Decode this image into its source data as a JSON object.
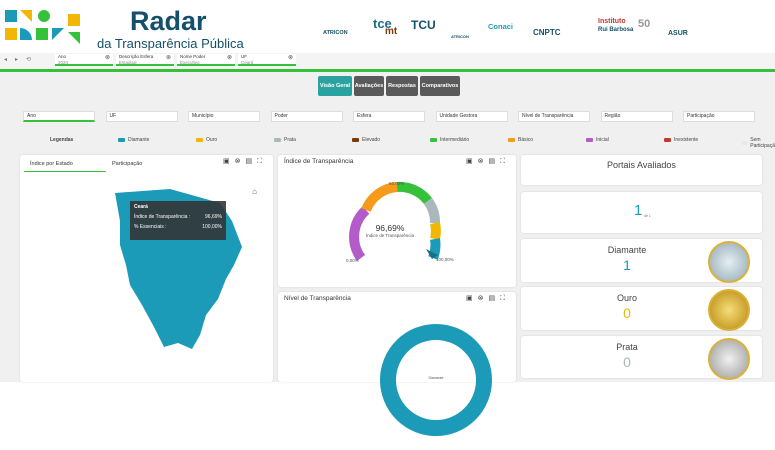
{
  "header": {
    "title": "Radar",
    "subtitle": "da Transparência Pública",
    "partners": [
      "ATRICON",
      "tce",
      "mt",
      "TCU",
      "ATRICON",
      "Conaci",
      "CNPTC",
      "Instituto",
      "Rui Barbosa",
      "50",
      "ASUR"
    ]
  },
  "active_filters": [
    {
      "label": "Ano",
      "value": "2024"
    },
    {
      "label": "Descrição Esfera",
      "value": "Estadual"
    },
    {
      "label": "Nome Poder",
      "value": "Executivo"
    },
    {
      "label": "UF",
      "value": "Ceará"
    }
  ],
  "tabs": [
    "Visão Geral",
    "Avaliações",
    "Respostas",
    "Comparativos"
  ],
  "filters": [
    "Ano",
    "UF",
    "Município",
    "Poder",
    "Esfera",
    "Unidade Gestora",
    "Nível de Transparência",
    "Região",
    "Participação"
  ],
  "legend": {
    "title": "Legendas",
    "items": [
      {
        "name": "Diamante",
        "color": "#1c9bb8"
      },
      {
        "name": "Ouro",
        "color": "#f2b705"
      },
      {
        "name": "Prata",
        "color": "#a9b8bd"
      },
      {
        "name": "Elevado",
        "color": "#7a3b0c"
      },
      {
        "name": "Intermediário",
        "color": "#35c23a"
      },
      {
        "name": "Básico",
        "color": "#f59a1b"
      },
      {
        "name": "Inicial",
        "color": "#b35cc9"
      },
      {
        "name": "Inexistente",
        "color": "#c0392b"
      },
      {
        "name": "Sem Participação",
        "color": "#e8e8e8"
      }
    ]
  },
  "map_panel": {
    "tabs": [
      "Índice por Estado",
      "Participação"
    ],
    "tooltip": {
      "title": "Ceará",
      "rows": [
        [
          "Índice de Transparência :",
          "96,69%"
        ],
        [
          "% Essenciais :",
          "100,00%"
        ]
      ]
    }
  },
  "gauge_panel": {
    "title": "Índice de Transparência",
    "top_label": "50,00%",
    "center_value": "96,69%",
    "center_label": "Índice de Transparência",
    "min_label": "0,00%",
    "max_label": "100,00%"
  },
  "donut_panel": {
    "title": "Nível de Transparência",
    "center_label": "Diamante"
  },
  "summary": {
    "title": "Portais Avaliados",
    "value": "1",
    "sub": "de 1",
    "cards": [
      {
        "name": "Diamante",
        "value": "1"
      },
      {
        "name": "Ouro",
        "value": "0"
      },
      {
        "name": "Prata",
        "value": "0"
      }
    ]
  }
}
